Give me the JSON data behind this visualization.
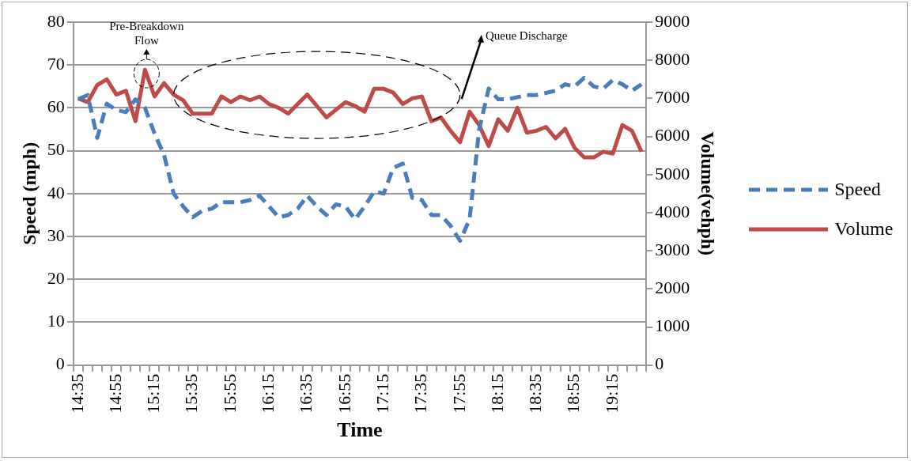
{
  "chart_data": {
    "type": "line",
    "xlabel": "Time",
    "ylabel": "Speed (mph)",
    "y2label": "Volume(vehph)",
    "categories": [
      "14:35",
      null,
      null,
      null,
      "14:55",
      null,
      null,
      null,
      "15:15",
      null,
      null,
      null,
      "15:35",
      null,
      null,
      null,
      "15:55",
      null,
      null,
      null,
      "16:15",
      null,
      null,
      null,
      "16:35",
      null,
      null,
      null,
      "16:55",
      null,
      null,
      null,
      "17:15",
      null,
      null,
      null,
      "17:35",
      null,
      null,
      null,
      "17:55",
      null,
      null,
      null,
      "18:15",
      null,
      null,
      null,
      "18:35",
      null,
      null,
      null,
      "18:55",
      null,
      null,
      null,
      "19:15",
      null,
      null,
      null
    ],
    "series": [
      {
        "name": "Speed",
        "color": "#4a7ebb",
        "line_style": "dashed",
        "values": [
          62,
          63,
          53,
          61,
          59.5,
          59,
          62,
          60,
          54,
          49,
          40,
          37,
          34.5,
          36,
          36.5,
          38,
          38,
          38,
          38.5,
          39.5,
          37,
          34.5,
          35,
          36.5,
          39.5,
          37,
          35,
          37.5,
          37,
          34,
          37,
          40.5,
          40,
          46,
          47,
          39,
          38.5,
          35,
          35,
          32.5,
          29,
          34,
          55,
          64.5,
          62,
          62,
          62.5,
          63,
          63,
          63.5,
          64,
          65.5,
          65,
          67,
          65,
          64.5,
          66.5,
          65.5,
          64,
          65.5
        ]
      },
      {
        "name": "Volume",
        "color": "#be4b48",
        "line_style": "solid",
        "axis": "y2",
        "values": [
          7000,
          6900,
          7350,
          7500,
          7100,
          7200,
          6400,
          7750,
          7050,
          7400,
          7100,
          6950,
          6600,
          6600,
          6600,
          7050,
          6900,
          7050,
          6950,
          7050,
          6850,
          6750,
          6600,
          6850,
          7100,
          6800,
          6500,
          6700,
          6900,
          6800,
          6650,
          7250,
          7250,
          7150,
          6850,
          7000,
          7050,
          6400,
          6500,
          6150,
          5850,
          6650,
          6300,
          5750,
          6450,
          6150,
          6750,
          6100,
          6150,
          6250,
          5950,
          6200,
          5700,
          5450,
          5450,
          5600,
          5550,
          6300,
          6150,
          5600
        ]
      }
    ],
    "ylim": [
      0,
      80
    ],
    "yticks": [
      0,
      10,
      20,
      30,
      40,
      50,
      60,
      70,
      80
    ],
    "y2lim": [
      0,
      9000
    ],
    "y2ticks": [
      0,
      1000,
      2000,
      3000,
      4000,
      5000,
      6000,
      7000,
      8000,
      9000
    ],
    "grid": "y",
    "legend": "right",
    "marker": "none",
    "annotations": [
      "Pre-Breakdown Flow",
      "Queue Discharge"
    ]
  }
}
